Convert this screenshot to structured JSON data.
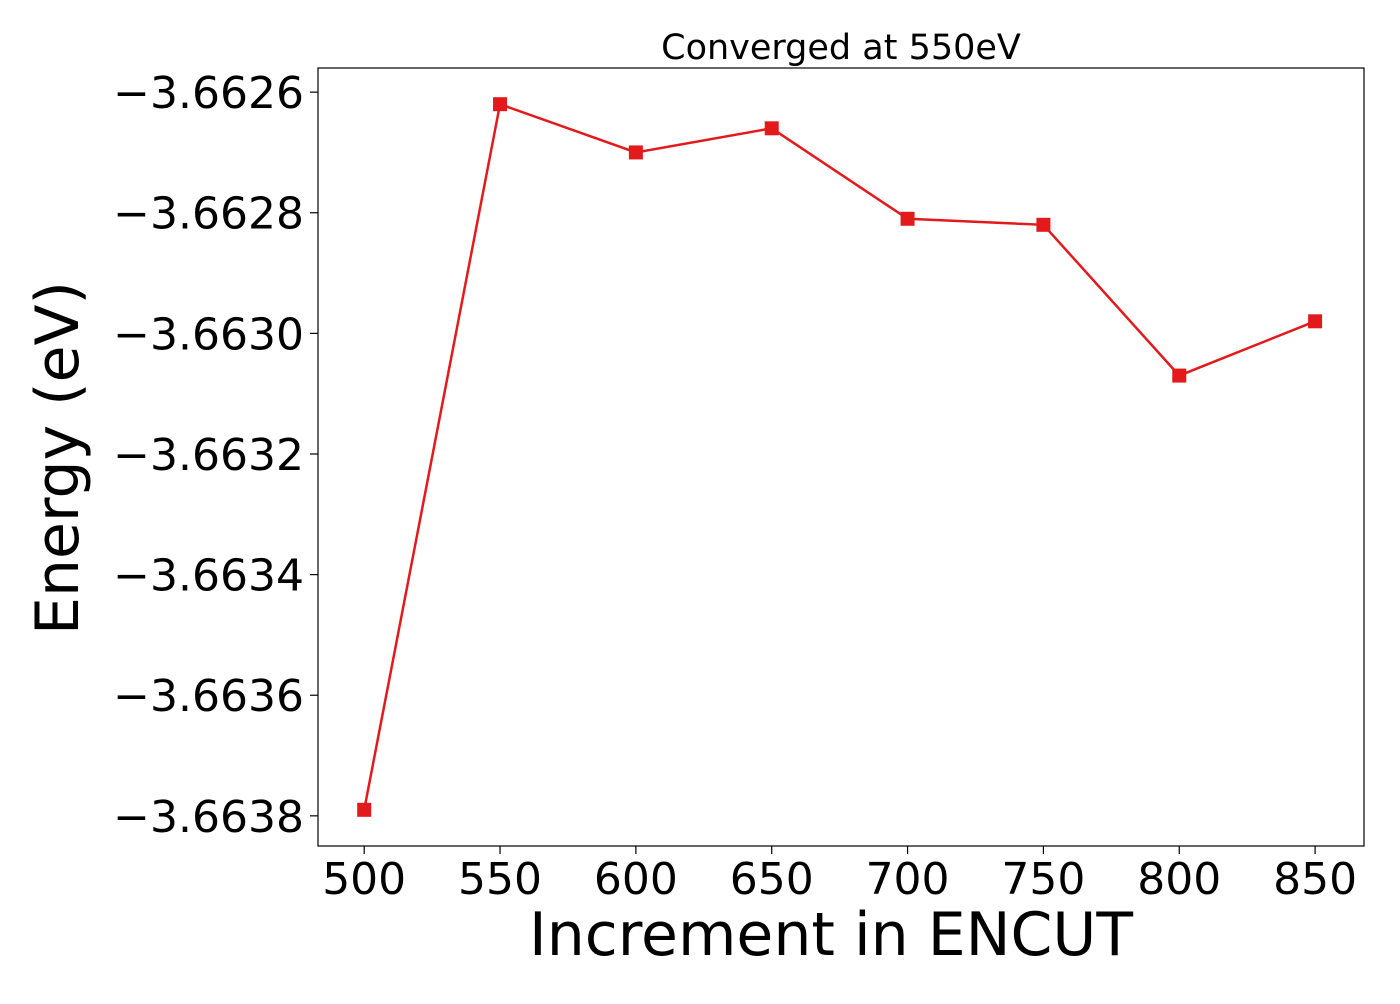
{
  "chart_data": {
    "type": "line",
    "title": "Converged at 550eV",
    "xlabel": "Increment in ENCUT",
    "ylabel": "Energy (eV)",
    "x": [
      500,
      550,
      600,
      650,
      700,
      750,
      800,
      850
    ],
    "series": [
      {
        "values": [
          -3.66379,
          -3.66262,
          -3.6627,
          -3.66266,
          -3.66281,
          -3.66282,
          -3.66307,
          -3.66298
        ],
        "color": "#e31a1c",
        "marker": "square"
      }
    ],
    "xticks": [
      500,
      550,
      600,
      650,
      700,
      750,
      800,
      850
    ],
    "xtick_labels": [
      "500",
      "550",
      "600",
      "650",
      "700",
      "750",
      "800",
      "850"
    ],
    "yticks": [
      -3.6638,
      -3.6636,
      -3.6634,
      -3.6632,
      -3.663,
      -3.6628,
      -3.6626
    ],
    "ytick_labels": [
      "−3.6638",
      "−3.6636",
      "−3.6634",
      "−3.6632",
      "−3.6630",
      "−3.6628",
      "−3.6626"
    ],
    "xlim": [
      483,
      868
    ],
    "ylim": [
      -3.66385,
      -3.66256
    ],
    "grid": false,
    "legend": false
  }
}
